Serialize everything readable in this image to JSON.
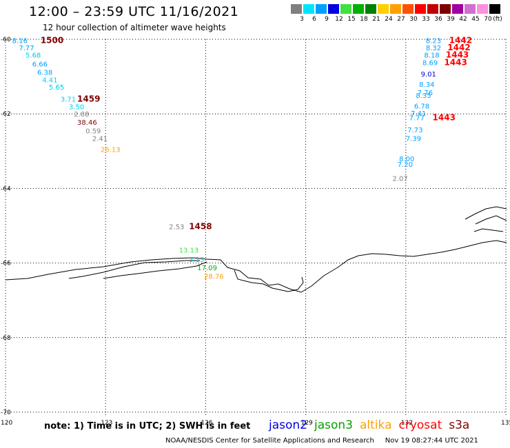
{
  "header": {
    "title": "12:00 – 23:59 UTC 11/16/2021",
    "subtitle": "12 hour collection of altimeter wave heights"
  },
  "legend": {
    "unit": "(ft)",
    "bins": [
      {
        "label": "3",
        "color": "#808080"
      },
      {
        "label": "6",
        "color": "#00e5ff"
      },
      {
        "label": "9",
        "color": "#00a0ff"
      },
      {
        "label": "12",
        "color": "#0000e0"
      },
      {
        "label": "15",
        "color": "#40e040"
      },
      {
        "label": "18",
        "color": "#00b000"
      },
      {
        "label": "21",
        "color": "#008000"
      },
      {
        "label": "24",
        "color": "#ffd000"
      },
      {
        "label": "27",
        "color": "#ffa000"
      },
      {
        "label": "30",
        "color": "#ff5000"
      },
      {
        "label": "33",
        "color": "#ff0000"
      },
      {
        "label": "36",
        "color": "#c00000"
      },
      {
        "label": "39",
        "color": "#800000"
      },
      {
        "label": "42",
        "color": "#a000a0"
      },
      {
        "label": "45",
        "color": "#d070d0"
      },
      {
        "label": "70",
        "color": "#ff90e0"
      },
      {
        "label": "",
        "color": "#000000"
      }
    ]
  },
  "axes": {
    "lon_ticks": [
      {
        "label": "120",
        "lon": 120
      },
      {
        "label": "123",
        "lon": 123
      },
      {
        "label": "126",
        "lon": 126
      },
      {
        "label": "129",
        "lon": 129
      },
      {
        "label": "132",
        "lon": 132
      },
      {
        "label": "135",
        "lon": 135
      }
    ],
    "lat_ticks": [
      {
        "label": "-60",
        "lat": -60
      },
      {
        "label": "-62",
        "lat": -62
      },
      {
        "label": "-64",
        "lat": -64
      },
      {
        "label": "-66",
        "lat": -66
      },
      {
        "label": "-68",
        "lat": -68
      },
      {
        "label": "-70",
        "lat": -70
      }
    ]
  },
  "observations": [
    {
      "text": "8.16",
      "lon": 120.2,
      "lat": -60.03,
      "color": "#00a0ff"
    },
    {
      "text": "7.77",
      "lon": 120.4,
      "lat": -60.22,
      "color": "#00a0ff"
    },
    {
      "text": "5.68",
      "lon": 120.6,
      "lat": -60.42,
      "color": "#00c8e0"
    },
    {
      "text": "6.66",
      "lon": 120.8,
      "lat": -60.66,
      "color": "#00a0ff"
    },
    {
      "text": "6.38",
      "lon": 120.95,
      "lat": -60.88,
      "color": "#00a0ff"
    },
    {
      "text": "4.41",
      "lon": 121.1,
      "lat": -61.08,
      "color": "#00d0e8"
    },
    {
      "text": "5.65",
      "lon": 121.3,
      "lat": -61.28,
      "color": "#00c8e0"
    },
    {
      "text": "3.71",
      "lon": 121.65,
      "lat": -61.6,
      "color": "#00d0e8"
    },
    {
      "text": "3.50",
      "lon": 121.9,
      "lat": -61.8,
      "color": "#00d0e8"
    },
    {
      "text": "2.88",
      "lon": 122.05,
      "lat": -62.0,
      "color": "#808080"
    },
    {
      "text": "38.46",
      "lon": 122.15,
      "lat": -62.22,
      "color": "#800000"
    },
    {
      "text": "0.59",
      "lon": 122.4,
      "lat": -62.45,
      "color": "#808080"
    },
    {
      "text": "2.41",
      "lon": 122.6,
      "lat": -62.65,
      "color": "#808080"
    },
    {
      "text": "26.13",
      "lon": 122.85,
      "lat": -62.95,
      "color": "#ffa000"
    },
    {
      "text": "2.53",
      "lon": 124.9,
      "lat": -65.02,
      "color": "#808080"
    },
    {
      "text": "13.13",
      "lon": 125.2,
      "lat": -65.65,
      "color": "#40e040"
    },
    {
      "text": "3.13",
      "lon": 125.5,
      "lat": -65.9,
      "color": "#00d0e8"
    },
    {
      "text": "17.09",
      "lon": 125.75,
      "lat": -66.12,
      "color": "#00b000"
    },
    {
      "text": "28.76",
      "lon": 125.95,
      "lat": -66.35,
      "color": "#ffa000"
    },
    {
      "text": "8.23",
      "lon": 132.6,
      "lat": -60.03,
      "color": "#00a0ff"
    },
    {
      "text": "8.32",
      "lon": 132.6,
      "lat": -60.22,
      "color": "#00a0ff"
    },
    {
      "text": "8.18",
      "lon": 132.55,
      "lat": -60.42,
      "color": "#00a0ff"
    },
    {
      "text": "8.69",
      "lon": 132.5,
      "lat": -60.62,
      "color": "#00a0ff"
    },
    {
      "text": "9.01",
      "lon": 132.45,
      "lat": -60.92,
      "color": "#0000e0"
    },
    {
      "text": "8.34",
      "lon": 132.4,
      "lat": -61.2,
      "color": "#00a0ff"
    },
    {
      "text": "7.76",
      "lon": 132.35,
      "lat": -61.42,
      "color": "#00a0ff"
    },
    {
      "text": "8.35",
      "lon": 132.3,
      "lat": -61.5,
      "color": "#00a0ff"
    },
    {
      "text": "6.78",
      "lon": 132.25,
      "lat": -61.78,
      "color": "#00a0ff"
    },
    {
      "text": "7.41",
      "lon": 132.15,
      "lat": -61.98,
      "color": "#00a0ff"
    },
    {
      "text": "7.77",
      "lon": 132.1,
      "lat": -62.1,
      "color": "#00a0ff"
    },
    {
      "text": "7.73",
      "lon": 132.05,
      "lat": -62.42,
      "color": "#00a0ff"
    },
    {
      "text": "7.39",
      "lon": 132.0,
      "lat": -62.65,
      "color": "#00a0ff"
    },
    {
      "text": "8.00",
      "lon": 131.8,
      "lat": -63.2,
      "color": "#00a0ff"
    },
    {
      "text": "7.20",
      "lon": 131.75,
      "lat": -63.35,
      "color": "#00a0ff"
    },
    {
      "text": "2.07",
      "lon": 131.6,
      "lat": -63.72,
      "color": "#808080"
    }
  ],
  "times": [
    {
      "text": "1500",
      "lon": 121.05,
      "lat": -60.03,
      "color": "#800000"
    },
    {
      "text": "1459",
      "lon": 122.15,
      "lat": -61.6,
      "color": "#800000"
    },
    {
      "text": "1458",
      "lon": 125.5,
      "lat": -65.02,
      "color": "#800000"
    },
    {
      "text": "1442",
      "lon": 133.3,
      "lat": -60.03,
      "color": "#ff0000"
    },
    {
      "text": "1442",
      "lon": 133.25,
      "lat": -60.22,
      "color": "#ff0000"
    },
    {
      "text": "1443",
      "lon": 133.2,
      "lat": -60.42,
      "color": "#ff0000"
    },
    {
      "text": "1443",
      "lon": 133.15,
      "lat": -60.62,
      "color": "#ff0000"
    },
    {
      "text": "1443",
      "lon": 132.8,
      "lat": -62.1,
      "color": "#ff0000"
    }
  ],
  "footer": {
    "note": "note: 1) Time is in UTC; 2) SWH is in feet",
    "satellites": [
      {
        "name": "jason2",
        "color": "#0000e0"
      },
      {
        "name": "jason3",
        "color": "#00a000"
      },
      {
        "name": "altika",
        "color": "#ffa000"
      },
      {
        "name": "cryosat",
        "color": "#ff0000"
      },
      {
        "name": "s3a",
        "color": "#800000"
      }
    ],
    "credit": "NOAA/NESDIS Center for Satellite Applications and Research",
    "timestamp": "Nov 19 08:27:44 UTC 2021"
  }
}
